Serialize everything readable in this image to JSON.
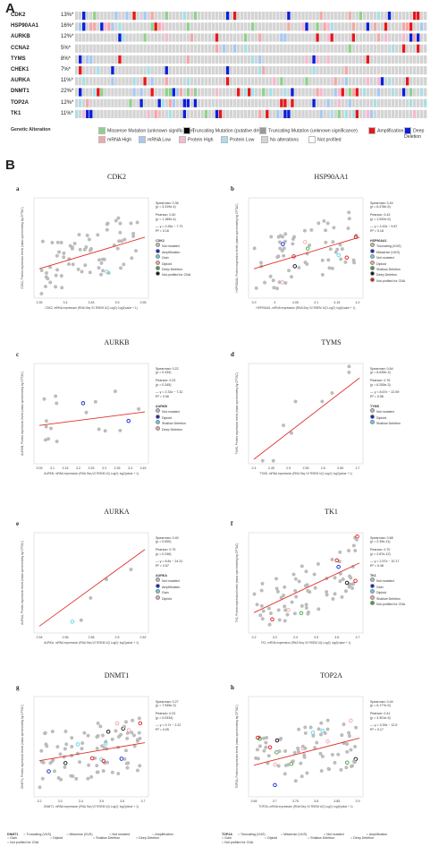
{
  "panelA": {
    "letter": "A",
    "genes": [
      {
        "name": "CDK2",
        "pct": "13%*"
      },
      {
        "name": "HSP90AA1",
        "pct": "16%*"
      },
      {
        "name": "AURKB",
        "pct": "12%*"
      },
      {
        "name": "CCNA2",
        "pct": "5%*"
      },
      {
        "name": "TYMS",
        "pct": "8%*"
      },
      {
        "name": "CHEK1",
        "pct": "7%*"
      },
      {
        "name": "AURKA",
        "pct": "11%*"
      },
      {
        "name": "DNMT1",
        "pct": "22%*"
      },
      {
        "name": "TOP2A",
        "pct": "12%*"
      },
      {
        "name": "TK1",
        "pct": "11%*"
      }
    ],
    "legend_title": "Genetic Alteration",
    "legend_items": [
      {
        "label": "Missense Mutation (unknown significance)",
        "color": "#8fd18b"
      },
      {
        "label": "Truncating Mutation (putative driver)",
        "color": "#000000"
      },
      {
        "label": "Truncating Mutation (unknown significance)",
        "color": "#999999"
      },
      {
        "label": "Amplification",
        "color": "#e3181b"
      },
      {
        "label": "Deep Deletion",
        "color": "#0b1fd8"
      },
      {
        "label": "mRNA High",
        "color": "#f2a8a8"
      },
      {
        "label": "mRNA Low",
        "color": "#a8c8f2"
      },
      {
        "label": "Protein High",
        "color": "#f7b9d0"
      },
      {
        "label": "Protein Low",
        "color": "#a7e0e8"
      },
      {
        "label": "No alterations",
        "color": "#d4d4d4"
      },
      {
        "label": "Not profiled",
        "color": "#ffffff"
      }
    ]
  },
  "panelB": {
    "letter": "B",
    "plots": [
      {
        "sub": "a",
        "title": "CDK2",
        "stats": "Spearman: 0.36\n(p = 3.319e-4)\n\nPearson: 0.40\n(p = 1.189e-4)\n\n— y = 2.26x − 7.73\nR² = 0.16",
        "legend_title": "CDK2",
        "legend": [
          "Not mutated",
          "Amplification",
          "Gain",
          "Diploid",
          "Deep Deletion",
          "Not profiled for CNA"
        ],
        "xlabel": "CDK2, mRNA expression (RNA Seq V2 RSEM UQ Log2): log2(value + 1)",
        "ylabel": "CDK2, Protein expression levels (mass spectrometry by CPTAC)",
        "xticks": [
          "3.35",
          "3.4",
          "3.45",
          "3.5",
          "3.55"
        ]
      },
      {
        "sub": "b",
        "title": "HSP90AA1",
        "stats": "Spearman: 0.44\n(p = 6.478e-5)\n\nPearson: 0.43\n(p = 1.092e-5)\n\n— y = 2.43x − 9.87\nR² = 0.18",
        "legend_title": "HSP90AA1",
        "legend": [
          "Truncating (VUS)",
          "Missense (VUS)",
          "Not mutated",
          "Diploid",
          "Shallow Deletion",
          "Deep Deletion",
          "Not profiled for CNA"
        ],
        "xlabel": "HSP90AA1, mRNA expression (RNA Seq V2 RSEM UQ Log2): log2(value + 1)",
        "ylabel": "HSP90AA1, Protein expression levels (mass spectrometry by CPTAC)",
        "xticks": [
          "3.9",
          "4",
          "4.05",
          "4.1",
          "4.15",
          "4.2"
        ]
      },
      {
        "sub": "c",
        "title": "AURKB",
        "stats": "Spearman: 0.22\n(p = 0.334)\n\nPearson: 0.23\n(p = 0.345)\n\n— y = 2.33x − 7.32\nR² = 0.06",
        "legend_title": "AURKB",
        "legend": [
          "Not mutated",
          "Diploid",
          "Shallow Deletion",
          "Deep Deletion"
        ],
        "xlabel": "AURKB, mRNA expression (RNA Seq V2 RSEM UQ Log2): log2(value + 1)",
        "ylabel": "AURKB, Protein expression levels (mass spectrometry by CPTAC)",
        "xticks": [
          "3.05",
          "3.1",
          "3.15",
          "3.2",
          "3.25",
          "3.3",
          "3.35",
          "3.4",
          "3.45"
        ]
      },
      {
        "sub": "d",
        "title": "TYMS",
        "stats": "Spearman: 0.64\n(p = 6.635e-3)\n\nPearson: 0.76\n(p = 6.255e-3)\n\n— y = 8.67x − 22.59\nR² = 0.58",
        "legend_title": "TYMS",
        "legend": [
          "Not mutated",
          "Diploid",
          "Shallow Deletion"
        ],
        "xlabel": "TYMS, mRNA expression (RNA Seq V2 RSEM UQ Log2): log2(value + 1)",
        "ylabel": "TYMS, Protein expression levels (mass spectrometry by CPTAC)",
        "xticks": [
          "2.4",
          "2.45",
          "2.5",
          "2.55",
          "2.6",
          "2.65",
          "2.7"
        ]
      },
      {
        "sub": "e",
        "title": "AURKA",
        "stats": "Spearman: 0.40\n(p = 0.500)\n\nPearson: 0.75\n(p = 0.246)\n\n— y = 8.8x − 24.31\nR² = 0.57",
        "legend_title": "AURKA",
        "legend": [
          "Not mutated",
          "Amplification",
          "Gain",
          "Diploid"
        ],
        "xlabel": "AURKA, mRNA expression (RNA Seq V2 RSEM UQ Log2): log2(value + 1)",
        "ylabel": "AURKA, Protein expression levels (mass spectrometry by CPTAC)",
        "xticks": [
          "2.54",
          "2.56",
          "2.58",
          "2.6",
          "2.62"
        ]
      },
      {
        "sub": "f",
        "title": "TK1",
        "stats": "Spearman: 0.68\n(p = 2.39e-11)\n\nPearson: 0.70\n(p = 2.87e-12)\n\n— y = 2.57x − 10.17\nR² = 0.48",
        "legend_title": "TK1",
        "legend": [
          "Not mutated",
          "Gain",
          "Diploid",
          "Shallow Deletion",
          "Not profiled for CNA"
        ],
        "xlabel": "TK1, mRNA expression (RNA Seq V2 RSEM UQ Log2): log2(value + 1)",
        "ylabel": "TK1, Protein expression levels (mass spectrometry by CPTAC)",
        "xticks": [
          "3.2",
          "3.3",
          "3.4",
          "3.5",
          "3.6",
          "3.7"
        ]
      },
      {
        "sub": "g",
        "title": "DNMT1",
        "stats": "Spearman: 0.27\n(p = 7.945e-3)\n\nPearson: 0.22\n(p = 0.0334)\n\n— y = 0.7x − 2.22\nR² = 0.05",
        "legend_title": "",
        "legend": [],
        "xlabel": "DNMT1, mRNA expression (RNA Seq V2 RSEM UQ Log2): log2(value + 1)",
        "ylabel": "DNMT1, Protein expression levels (mass spectrometry by CPTAC)",
        "xticks": [
          "3.2",
          "3.3",
          "3.4",
          "3.5",
          "3.6",
          "3.7"
        ]
      },
      {
        "sub": "h",
        "title": "TOP2A",
        "stats": "Spearman: 0.44\n(p = 6.177e-5)\n\nPearson: 0.41\n(p = 3.301e-5)\n\n— y = 3.39x − 12.5\nR² = 0.17",
        "legend_title": "",
        "legend": [],
        "xlabel": "TOP2A, mRNA expression (RNA Seq V2 RSEM UQ Log2): log2(value + 1)",
        "ylabel": "TOP2A, Protein expression levels (mass spectrometry by CPTAC)",
        "xticks": [
          "3.65",
          "3.7",
          "3.75",
          "3.8",
          "3.85",
          "3.9"
        ]
      }
    ],
    "bottom_legends": [
      {
        "title": "DNMT1",
        "items": [
          "Truncating (VUS)",
          "Missense (VUS)",
          "Not mutated",
          "Amplification",
          "Gain",
          "Diploid",
          "Shallow Deletion",
          "Deep Deletion",
          "Not profiled for CNA"
        ]
      },
      {
        "title": "TOP2A",
        "items": [
          "Truncating (VUS)",
          "Missense (VUS)",
          "Not mutated",
          "Amplification",
          "Gain",
          "Diploid",
          "Shallow Deletion",
          "Deep Deletion",
          "Not profiled for CNA"
        ]
      }
    ]
  },
  "colors": {
    "regression": "#e0312b",
    "point": "#bdbdbd",
    "amplification": "#e3181b",
    "deep_deletion": "#0b1fd8",
    "shallow": "#5fd0e8",
    "gain": "#f4a6a6",
    "missense": "#39a935"
  }
}
